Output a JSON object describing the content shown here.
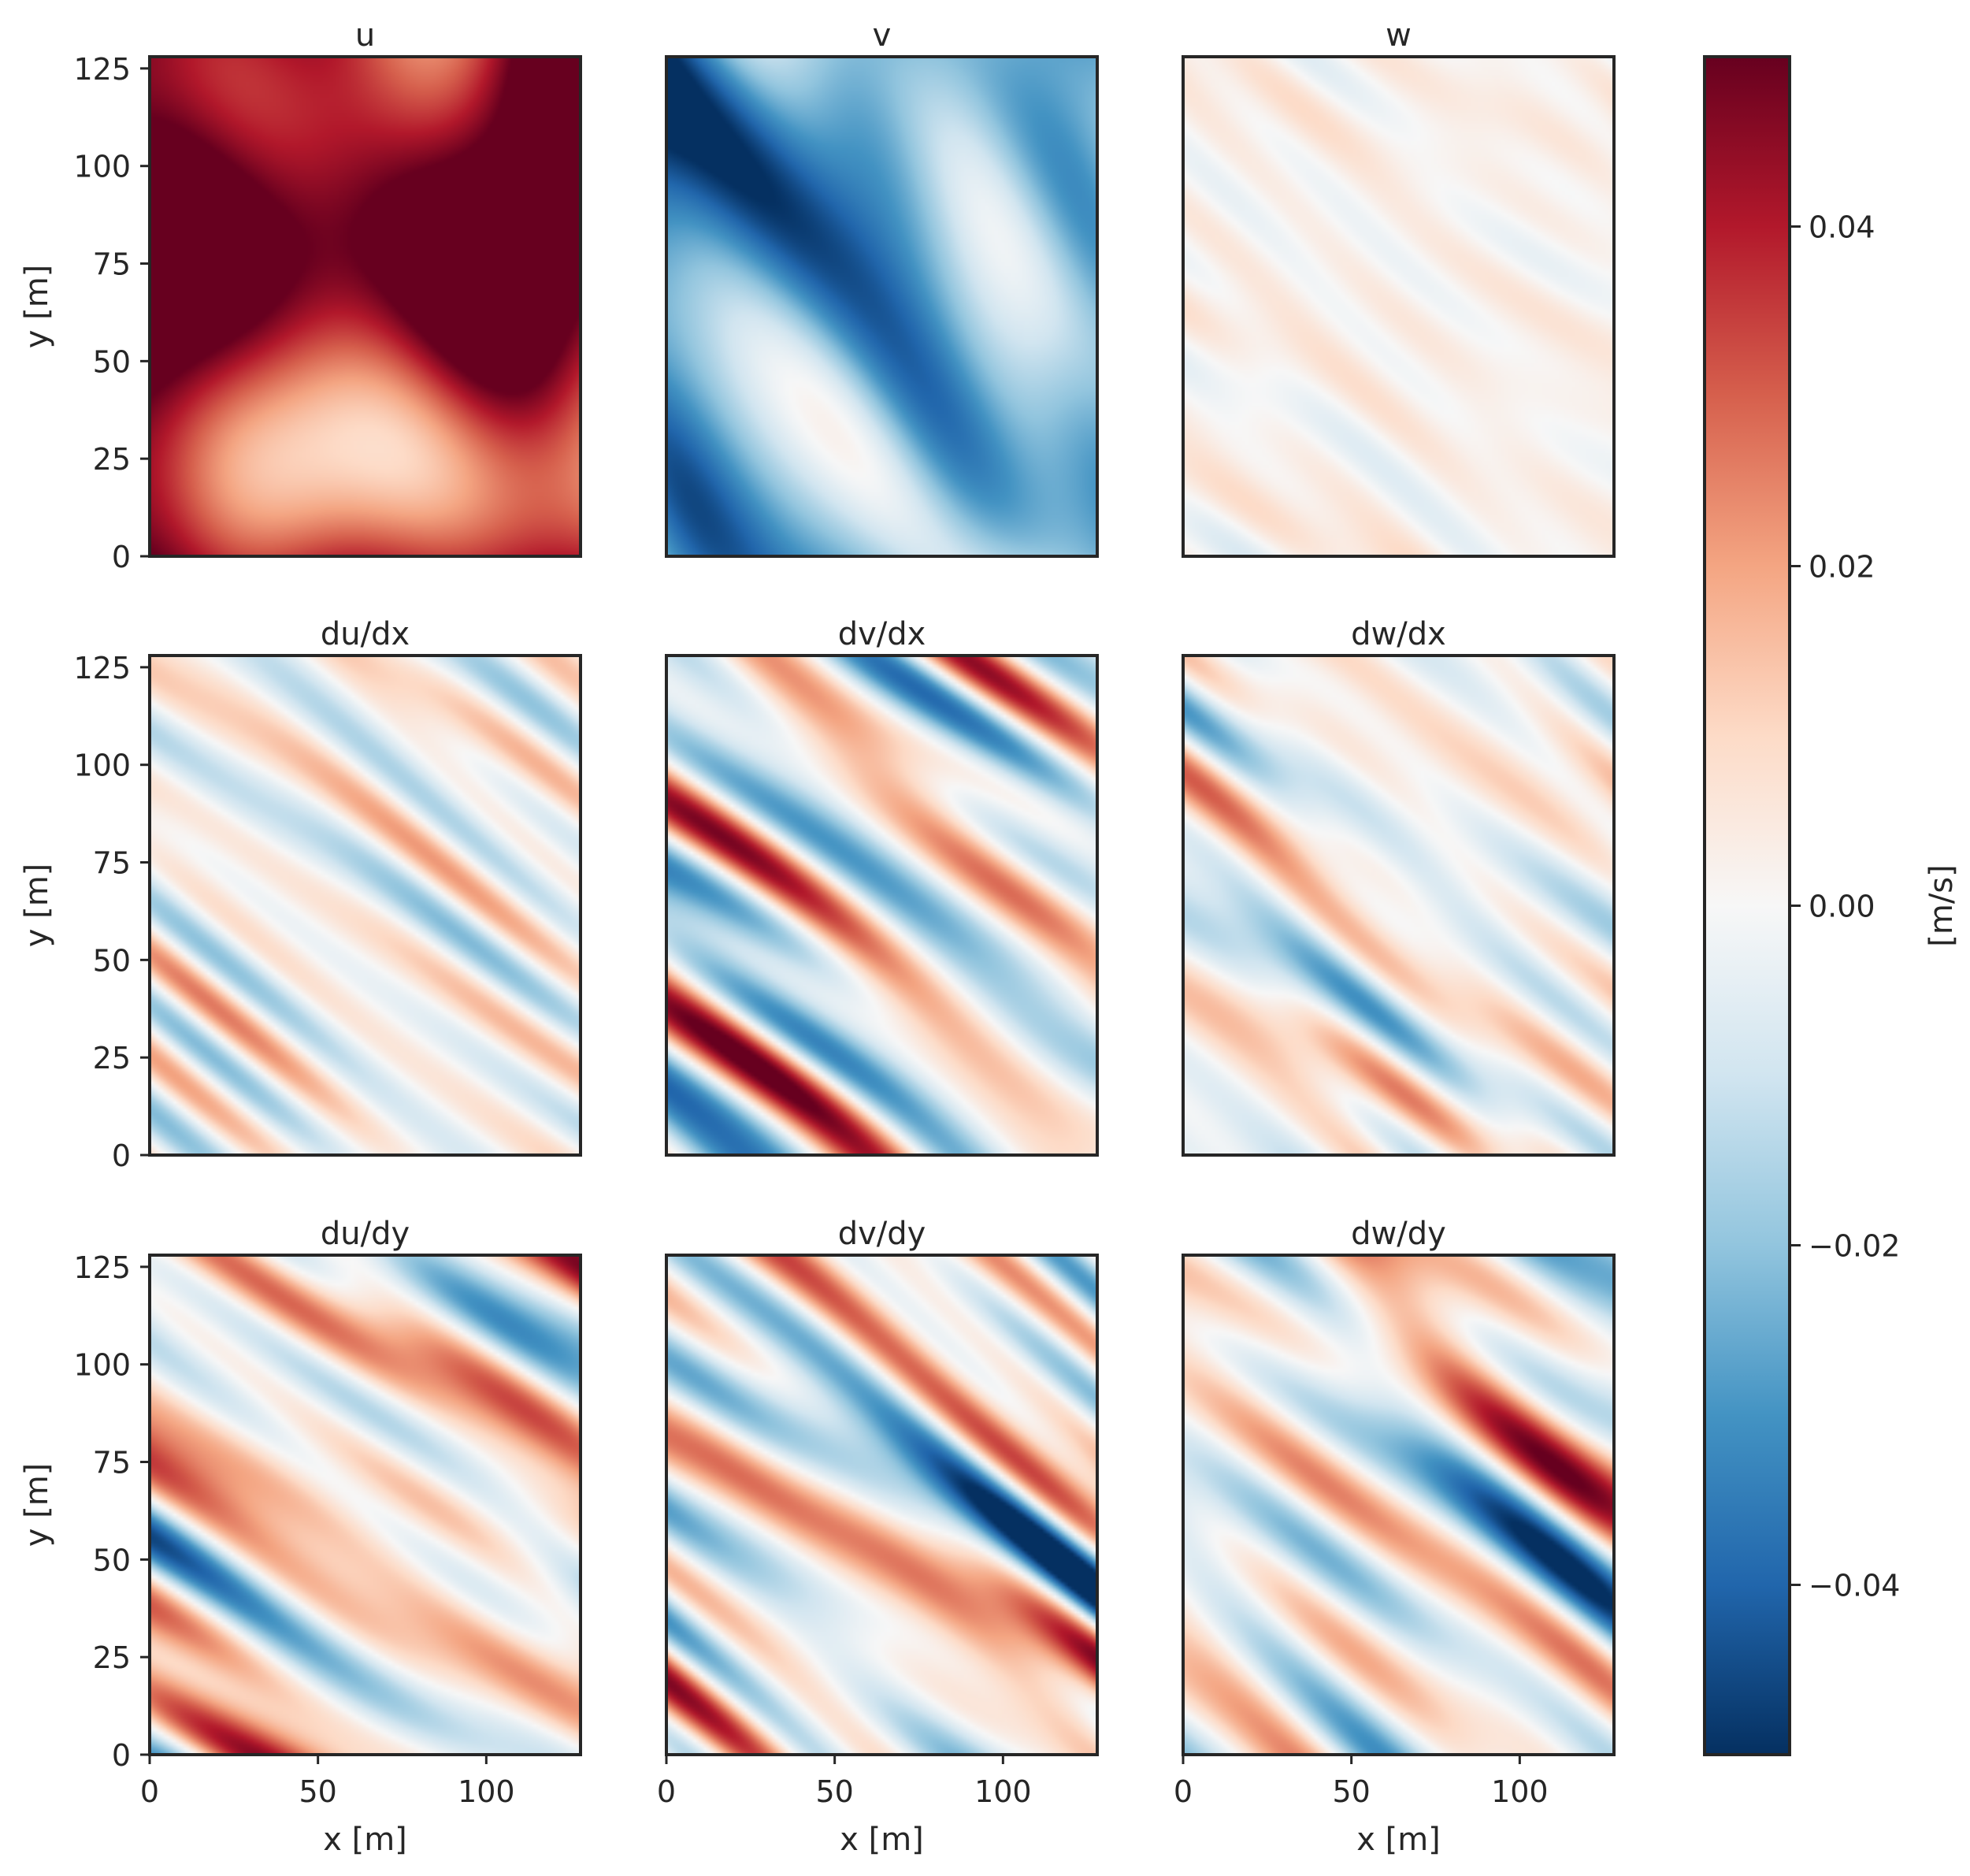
{
  "chart_data": {
    "type": "heatmap",
    "layout": "3x3 grid of panels with one shared colorbar on the right",
    "grid": false,
    "colormap": "RdBu_r",
    "panels": [
      {
        "title": "u",
        "mean_value": 0.05,
        "variation": "strong",
        "pattern": "blotchy",
        "xlabel": "",
        "ylabel": "y [m]"
      },
      {
        "title": "v",
        "mean_value": -0.022,
        "variation": "strong",
        "pattern": "blotchy",
        "xlabel": "",
        "ylabel": ""
      },
      {
        "title": "w",
        "mean_value": 0.002,
        "variation": "weak",
        "pattern": "streaky",
        "xlabel": "",
        "ylabel": ""
      },
      {
        "title": "du/dx",
        "mean_value": 0.0,
        "variation": "medium",
        "pattern": "streaky",
        "xlabel": "",
        "ylabel": "y [m]"
      },
      {
        "title": "dv/dx",
        "mean_value": 0.0,
        "variation": "strong",
        "pattern": "streaky",
        "xlabel": "",
        "ylabel": ""
      },
      {
        "title": "dw/dx",
        "mean_value": 0.0,
        "variation": "medium",
        "pattern": "streaky",
        "xlabel": "",
        "ylabel": ""
      },
      {
        "title": "du/dy",
        "mean_value": 0.005,
        "variation": "strong",
        "pattern": "streaky",
        "xlabel": "x [m]",
        "ylabel": "y [m]"
      },
      {
        "title": "dv/dy",
        "mean_value": 0.0,
        "variation": "strong",
        "pattern": "streaky",
        "xlabel": "x [m]",
        "ylabel": ""
      },
      {
        "title": "dw/dy",
        "mean_value": 0.0,
        "variation": "strong",
        "pattern": "streaky",
        "xlabel": "x [m]",
        "ylabel": ""
      }
    ],
    "xlim": [
      0,
      128
    ],
    "ylim": [
      0,
      128
    ],
    "x_ticks": [
      0,
      50,
      100
    ],
    "x_tick_labels": [
      "0",
      "50",
      "100"
    ],
    "y_ticks": [
      0,
      25,
      50,
      75,
      100,
      125
    ],
    "y_tick_labels": [
      "0",
      "25",
      "50",
      "75",
      "100",
      "125"
    ],
    "colorbar": {
      "label": "[m/s]",
      "vmin": -0.05,
      "vmax": 0.05,
      "ticks": [
        0.04,
        0.02,
        0.0,
        -0.02,
        -0.04
      ],
      "tick_labels": [
        "0.04",
        "0.02",
        "0.00",
        "−0.02",
        "−0.04"
      ],
      "colors": [
        "#053061",
        "#2166ac",
        "#4393c3",
        "#92c5de",
        "#d1e5f0",
        "#f7f7f7",
        "#fddbc7",
        "#f4a582",
        "#d6604d",
        "#b2182b",
        "#67001f"
      ]
    }
  }
}
